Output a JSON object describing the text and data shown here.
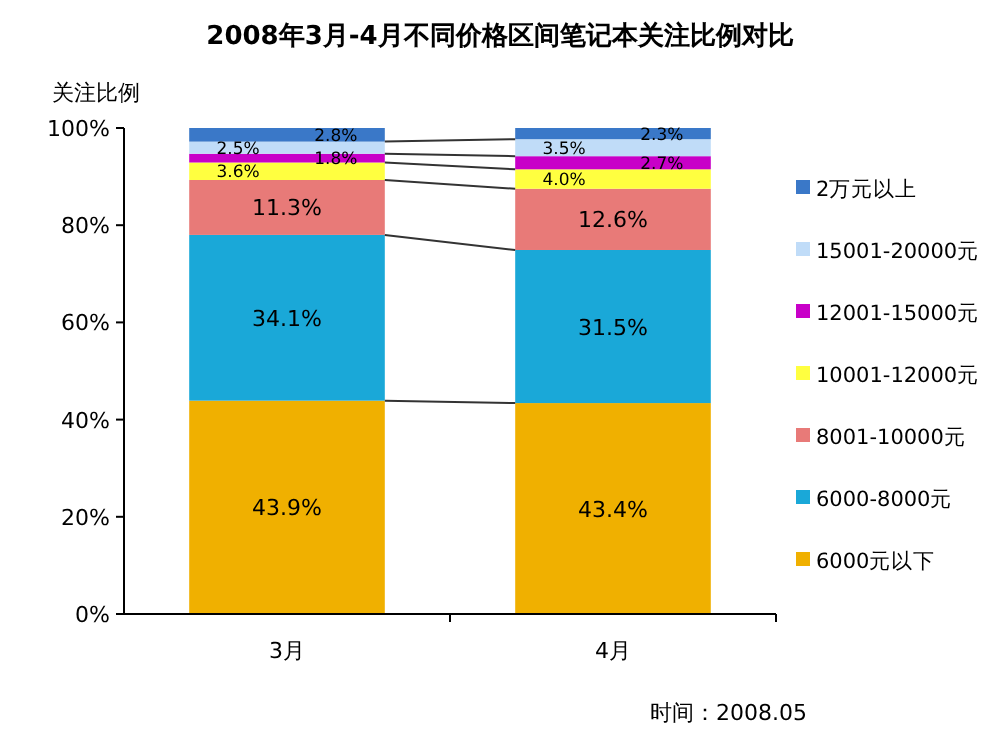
{
  "chart_data": {
    "type": "bar",
    "stacked": true,
    "title": "2008年3月-4月不同价格区间笔记本关注比例对比",
    "ylabel": "关注比例",
    "categories": [
      "3月",
      "4月"
    ],
    "series": [
      {
        "name": "6000元以下",
        "color": "#f0b000",
        "values": [
          43.9,
          43.4
        ],
        "value_labels": [
          "43.9%",
          "43.4%"
        ]
      },
      {
        "name": "6000-8000元",
        "color": "#1aa8d8",
        "values": [
          34.1,
          31.5
        ],
        "value_labels": [
          "34.1%",
          "31.5%"
        ]
      },
      {
        "name": "8001-10000元",
        "color": "#e87a78",
        "values": [
          11.3,
          12.6
        ],
        "value_labels": [
          "11.3%",
          "12.6%"
        ]
      },
      {
        "name": "10001-12000元",
        "color": "#ffff40",
        "values": [
          3.6,
          4.0
        ],
        "value_labels": [
          "3.6%",
          "4.0%"
        ]
      },
      {
        "name": "12001-15000元",
        "color": "#c800c8",
        "values": [
          1.8,
          2.7
        ],
        "value_labels": [
          "1.8%",
          "2.7%"
        ]
      },
      {
        "name": "15001-20000元",
        "color": "#c0dcf8",
        "values": [
          2.5,
          3.5
        ],
        "value_labels": [
          "2.5%",
          "3.5%"
        ]
      },
      {
        "name": "2万元以上",
        "color": "#3a78c8",
        "values": [
          2.8,
          2.3
        ],
        "value_labels": [
          "2.8%",
          "2.3%"
        ]
      }
    ],
    "ylim": [
      0,
      100
    ],
    "yticks": [
      {
        "value": 0,
        "label": "0%"
      },
      {
        "value": 20,
        "label": "20%"
      },
      {
        "value": 40,
        "label": "40%"
      },
      {
        "value": 60,
        "label": "60%"
      },
      {
        "value": 80,
        "label": "80%"
      },
      {
        "value": 100,
        "label": "100%"
      }
    ],
    "legend": "right",
    "grid": false,
    "annotations": [
      "时间：2008.05"
    ]
  }
}
